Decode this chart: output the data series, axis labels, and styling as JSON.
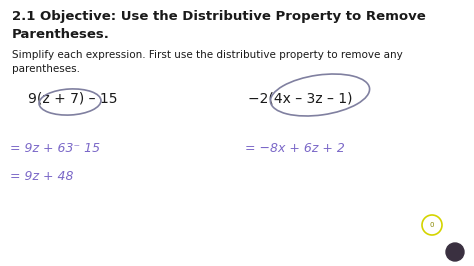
{
  "bg_color": "#ffffff",
  "title_line1": "2.1 Objective: Use the Distributive Property to Remove",
  "title_line2": "Parentheses.",
  "subtitle": "Simplify each expression. First use the distributive property to remove any\nparentheses.",
  "title_fontsize": 9.5,
  "title_weight": "bold",
  "subtitle_fontsize": 7.5,
  "expr1": "9(z + 7) – 15",
  "expr2": "−2(4x – 3z – 1)",
  "step1a": "= 9z + 63⁻ 15",
  "step1b": "= 9z + 48",
  "step2a": "= −8x + 6z + 2",
  "handwriting_color": "#7b68c8",
  "printed_color": "#1a1a1a",
  "circle_color": "#8080a0",
  "circle_lw": 1.2,
  "expr_fontsize": 10,
  "hand_fontsize": 9,
  "dot_yellow_color": "#d4d400",
  "dot_dark_color": "#3a3040"
}
